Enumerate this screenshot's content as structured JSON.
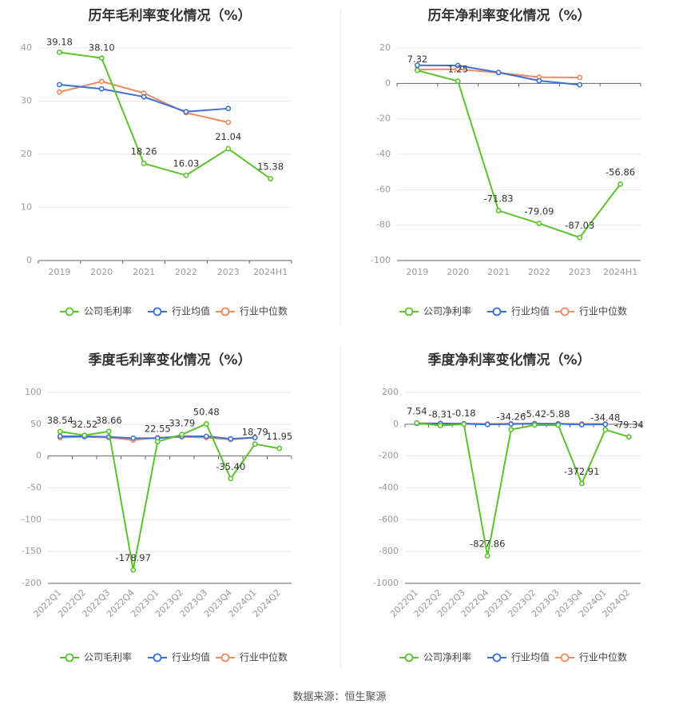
{
  "colors": {
    "company": "#5cc22e",
    "industry_avg": "#3b6fd9",
    "industry_median": "#f08a5d",
    "grid": "#e8e8e8",
    "axis_text": "#999999",
    "label_text": "#333333"
  },
  "legend_labels": {
    "industry_avg": "行业均值",
    "industry_median": "行业中位数"
  },
  "source": "数据来源：恒生聚源",
  "chart_data": [
    {
      "id": "annual-gross",
      "type": "line",
      "title": "历年毛利率变化情况（%）",
      "categories": [
        "2019",
        "2020",
        "2021",
        "2022",
        "2023",
        "2024H1"
      ],
      "ylim": [
        0,
        40
      ],
      "yticks": [
        0,
        10,
        20,
        30,
        40
      ],
      "rotate_x": false,
      "series": [
        {
          "key": "company",
          "name": "公司毛利率",
          "values": [
            39.18,
            38.1,
            18.26,
            16.03,
            21.04,
            15.38
          ],
          "labels": [
            "39.18",
            "38.10",
            "18.26",
            "16.03",
            "21.04",
            "15.38"
          ]
        },
        {
          "key": "industry_avg",
          "name": "行业均值",
          "values": [
            33.1,
            32.3,
            30.8,
            28.0,
            28.6,
            null
          ]
        },
        {
          "key": "industry_median",
          "name": "行业中位数",
          "values": [
            31.7,
            33.7,
            31.5,
            27.8,
            26.0,
            null
          ]
        }
      ]
    },
    {
      "id": "annual-net",
      "type": "line",
      "title": "历年净利率变化情况（%）",
      "categories": [
        "2019",
        "2020",
        "2021",
        "2022",
        "2023",
        "2024H1"
      ],
      "ylim": [
        -100,
        20
      ],
      "yticks": [
        -100,
        -80,
        -60,
        -40,
        -20,
        0,
        20
      ],
      "rotate_x": false,
      "series": [
        {
          "key": "company",
          "name": "公司净利率",
          "values": [
            7.32,
            1.25,
            -71.83,
            -79.09,
            -87.03,
            -56.86
          ],
          "labels": [
            "7.32",
            "1.25",
            "-71.83",
            "-79.09",
            "-87.03",
            "-56.86"
          ]
        },
        {
          "key": "industry_avg",
          "name": "行业均值",
          "values": [
            10.2,
            10.1,
            6.2,
            1.5,
            -0.8,
            null
          ]
        },
        {
          "key": "industry_median",
          "name": "行业中位数",
          "values": [
            7.8,
            8.0,
            6.0,
            3.5,
            3.3,
            null
          ]
        }
      ]
    },
    {
      "id": "quarter-gross",
      "type": "line",
      "title": "季度毛利率变化情况（%）",
      "categories": [
        "2022Q1",
        "2022Q2",
        "2022Q3",
        "2022Q4",
        "2023Q1",
        "2023Q2",
        "2023Q3",
        "2023Q4",
        "2024Q1",
        "2024Q2"
      ],
      "ylim": [
        -200,
        100
      ],
      "yticks": [
        -200,
        -150,
        -100,
        -50,
        0,
        50,
        100
      ],
      "rotate_x": true,
      "series": [
        {
          "key": "company",
          "name": "公司毛利率",
          "values": [
            38.54,
            32.52,
            38.66,
            -178.97,
            22.55,
            33.79,
            50.48,
            -35.4,
            18.79,
            11.95
          ],
          "labels": [
            "38.54",
            "32.52",
            "38.66",
            "-178.97",
            "22.55",
            "33.79",
            "50.48",
            "-35.40",
            "18.79",
            "11.95"
          ]
        },
        {
          "key": "industry_avg",
          "name": "行业均值",
          "values": [
            31,
            31,
            30,
            28,
            28,
            31,
            31,
            27,
            29,
            null
          ]
        },
        {
          "key": "industry_median",
          "name": "行业中位数",
          "values": [
            29,
            30,
            29,
            25,
            29,
            30,
            29,
            26,
            29,
            null
          ]
        }
      ]
    },
    {
      "id": "quarter-net",
      "type": "line",
      "title": "季度净利率变化情况（%）",
      "categories": [
        "2022Q1",
        "2022Q2",
        "2022Q3",
        "2022Q4",
        "2023Q1",
        "2023Q2",
        "2023Q3",
        "2023Q4",
        "2024Q1",
        "2024Q2"
      ],
      "ylim": [
        -1000,
        200
      ],
      "yticks": [
        -1000,
        -800,
        -600,
        -400,
        -200,
        0,
        200
      ],
      "rotate_x": true,
      "series": [
        {
          "key": "company",
          "name": "公司净利率",
          "values": [
            7.54,
            -8.31,
            -0.18,
            -827.86,
            -34.26,
            -5.42,
            -5.88,
            -372.91,
            -34.48,
            -79.34
          ],
          "labels": [
            "7.54",
            "-8.31",
            "-0.18",
            "-827.86",
            "-34.26",
            "-5.42",
            "-5.88",
            "-372.91",
            "-34.48",
            "-79.34"
          ]
        },
        {
          "key": "industry_avg",
          "name": "行业均值",
          "values": [
            5,
            4,
            3,
            -2,
            1,
            3,
            2,
            -3,
            -1,
            null
          ]
        },
        {
          "key": "industry_median",
          "name": "行业中位数",
          "values": [
            6,
            5,
            4,
            2,
            3,
            4,
            3,
            2,
            2,
            null
          ]
        }
      ]
    }
  ]
}
